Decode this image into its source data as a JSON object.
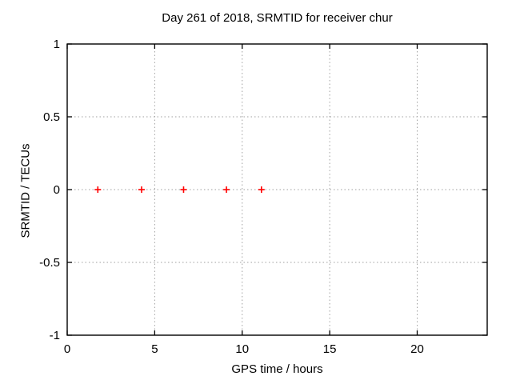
{
  "chart_data": {
    "type": "scatter",
    "title": "Day 261 of 2018, SRMTID for receiver chur",
    "xlabel": "GPS time / hours",
    "ylabel": "SRMTID / TECUs",
    "xlim": [
      0,
      24
    ],
    "ylim": [
      -1,
      1
    ],
    "xticks": [
      0,
      5,
      10,
      15,
      20
    ],
    "yticks": [
      -1,
      -0.5,
      0,
      0.5,
      1
    ],
    "ytick_labels": [
      "-1",
      "-0.5",
      "0",
      "0.5",
      "1"
    ],
    "xtick_labels": [
      "0",
      "5",
      "10",
      "15",
      "20"
    ],
    "grid": "dotted, on major ticks, mirrored tick marks on all four borders",
    "legend": "none",
    "series": [
      {
        "name": "SRMTID",
        "marker": "plus",
        "marker_color": "#ff0000",
        "points": [
          {
            "x": 1.75,
            "y": 0
          },
          {
            "x": 4.25,
            "y": 0
          },
          {
            "x": 6.65,
            "y": 0
          },
          {
            "x": 9.1,
            "y": 0
          },
          {
            "x": 11.1,
            "y": 0
          }
        ]
      }
    ],
    "colors": {
      "border": "#000000",
      "grid": "#a0a0a0",
      "text": "#000000",
      "background": "#ffffff"
    }
  }
}
